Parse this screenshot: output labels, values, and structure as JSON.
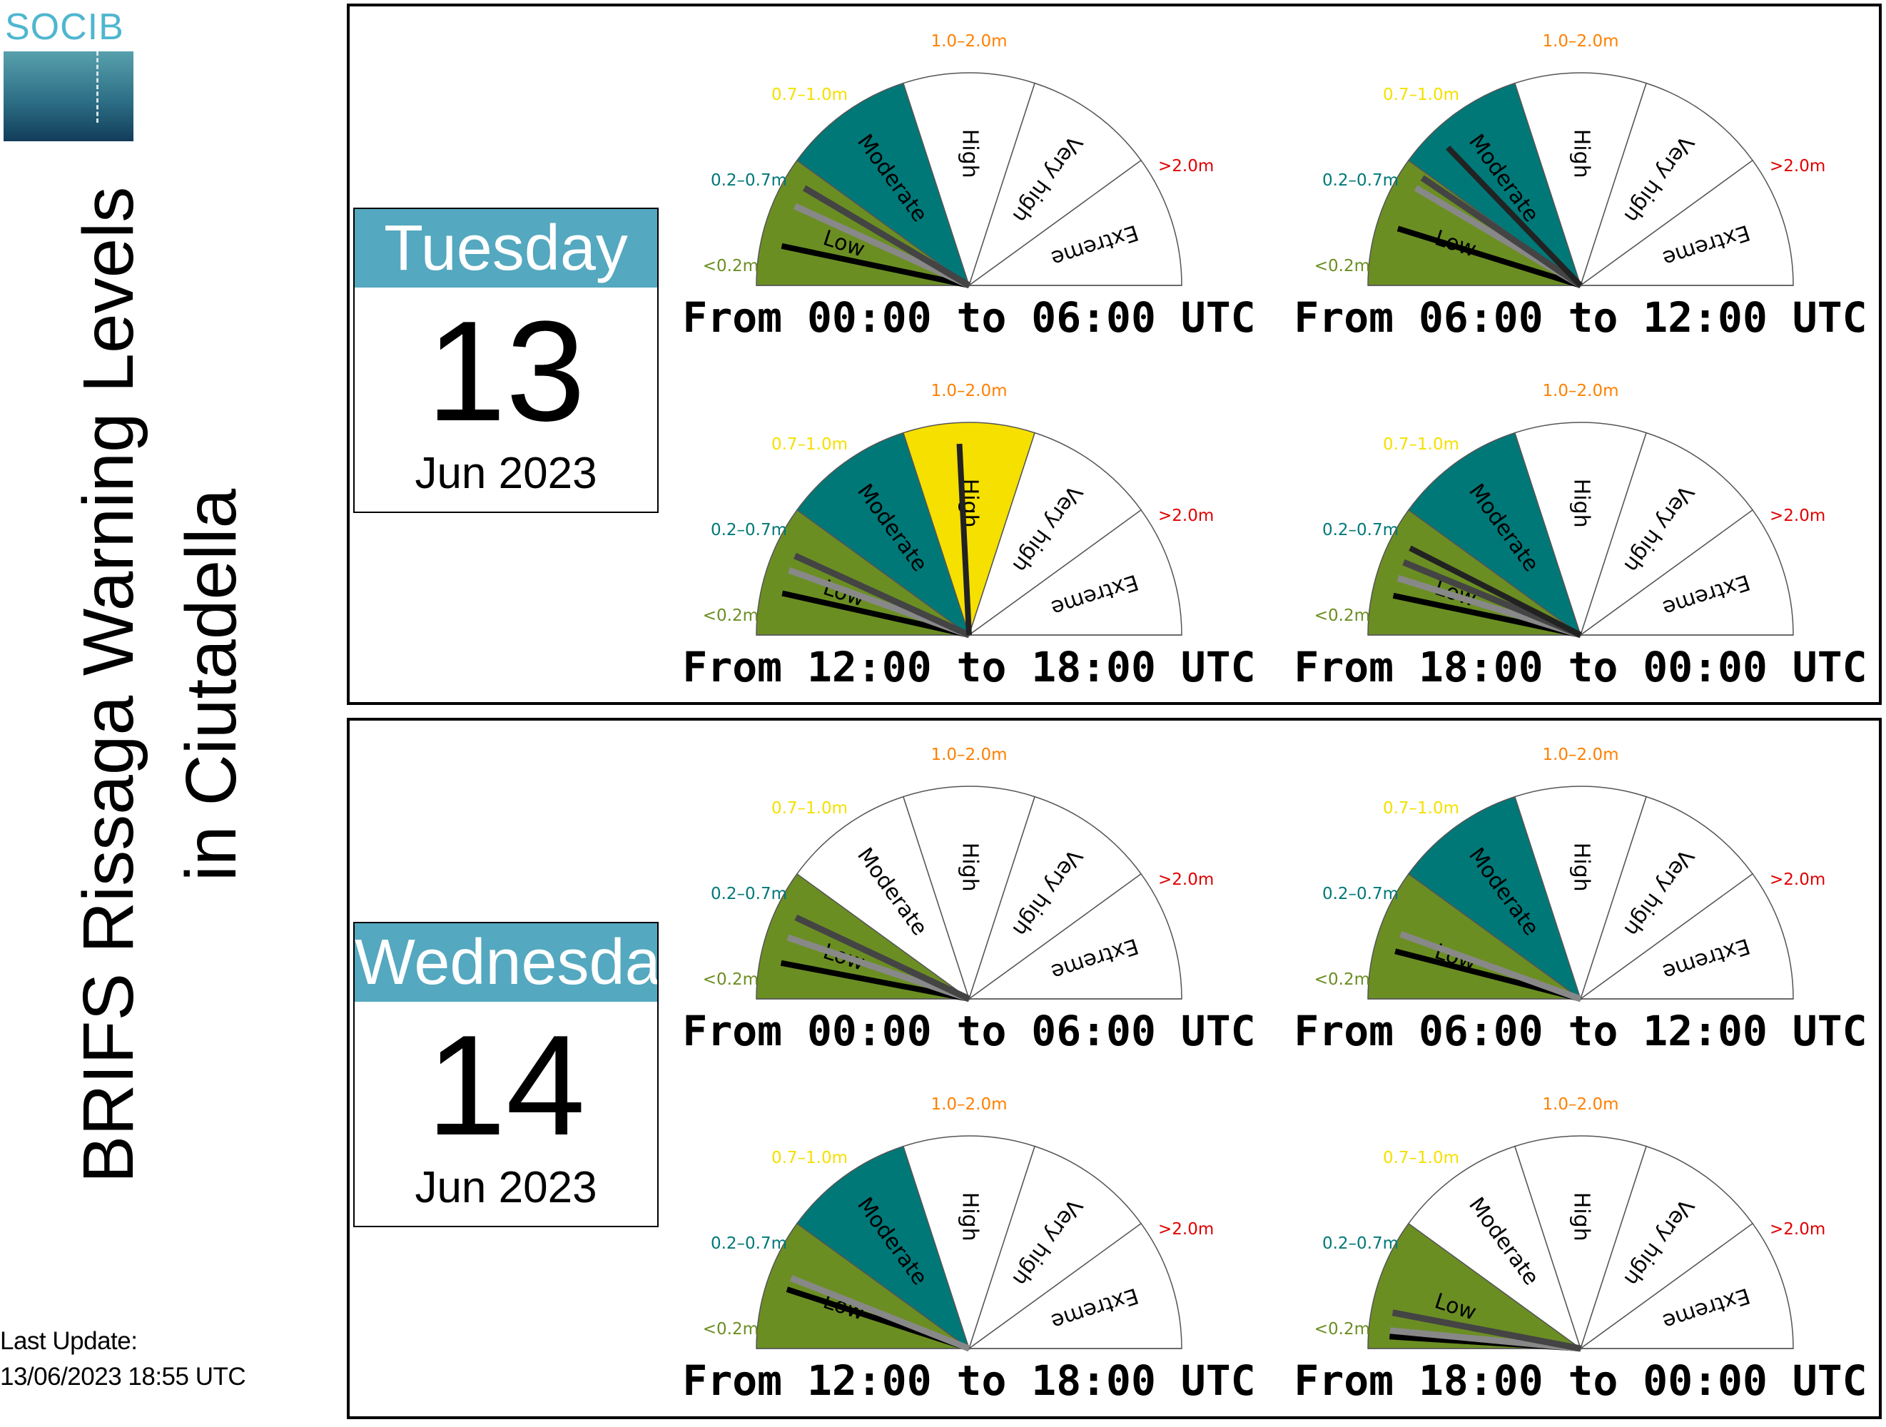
{
  "logo": {
    "text": "SOCIB"
  },
  "title": "BRIFS Rissaga Warning Levels\nin Ciutadella",
  "last_update": {
    "label": "Last Update:",
    "value": "13/06/2023 18:55 UTC"
  },
  "levels": [
    {
      "name": "Low",
      "range": "<0.2m",
      "color": "#6b8e23",
      "range_color": "#6b8e23"
    },
    {
      "name": "Moderate",
      "range": "0.2–0.7m",
      "color": "#007878",
      "range_color": "#007878"
    },
    {
      "name": "High",
      "range": "0.7–1.0m",
      "color": "#f5e000",
      "range_color": "#f5e000"
    },
    {
      "name": "Very high",
      "range": "1.0–2.0m",
      "color": "#ff8000",
      "range_color": "#ff8000"
    },
    {
      "name": "Extreme",
      "range": ">2.0m",
      "color": "#e00000",
      "range_color": "#e00000"
    }
  ],
  "days": [
    {
      "weekday": "Tuesday",
      "day": "13",
      "month_year": "Jun 2023"
    },
    {
      "weekday": "Wednesday",
      "day": "14",
      "month_year": "Jun 2023"
    }
  ],
  "chart_data": {
    "type": "gauge",
    "axis": {
      "unit": "warning level (0 = bottom of Low, 5 = top of Extreme)",
      "range": [
        0,
        5
      ]
    },
    "gauges": [
      {
        "day": "Tuesday 13 Jun 2023",
        "period": "From 00:00 to 06:00 UTC",
        "level": "Moderate",
        "needles": [
          0.33,
          0.68,
          0.85
        ]
      },
      {
        "day": "Tuesday 13 Jun 2023",
        "period": "From 06:00 to 12:00 UTC",
        "level": "Moderate",
        "needles": [
          0.48,
          0.85,
          0.95,
          1.28
        ]
      },
      {
        "day": "Tuesday 13 Jun 2023",
        "period": "From 12:00 to 18:00 UTC",
        "level": "High",
        "needles": [
          0.35,
          0.55,
          0.68,
          2.42
        ]
      },
      {
        "day": "Tuesday 13 Jun 2023",
        "period": "From 18:00 to 00:00 UTC",
        "level": "Moderate",
        "needles": [
          0.33,
          0.48,
          0.62,
          0.75
        ]
      },
      {
        "day": "Wednesday 14 Jun 2023",
        "period": "From 00:00 to 06:00 UTC",
        "level": "Low",
        "needles": [
          0.3,
          0.52,
          0.7
        ]
      },
      {
        "day": "Wednesday 14 Jun 2023",
        "period": "From 06:00 to 12:00 UTC",
        "level": "Moderate",
        "needles": [
          0.4,
          0.55
        ]
      },
      {
        "day": "Wednesday 14 Jun 2023",
        "period": "From 12:00 to 18:00 UTC",
        "level": "Moderate",
        "needles": [
          0.5,
          0.6
        ]
      },
      {
        "day": "Wednesday 14 Jun 2023",
        "period": "From 18:00 to 00:00 UTC",
        "level": "Low",
        "needles": [
          0.1,
          0.15,
          0.3
        ]
      }
    ]
  }
}
